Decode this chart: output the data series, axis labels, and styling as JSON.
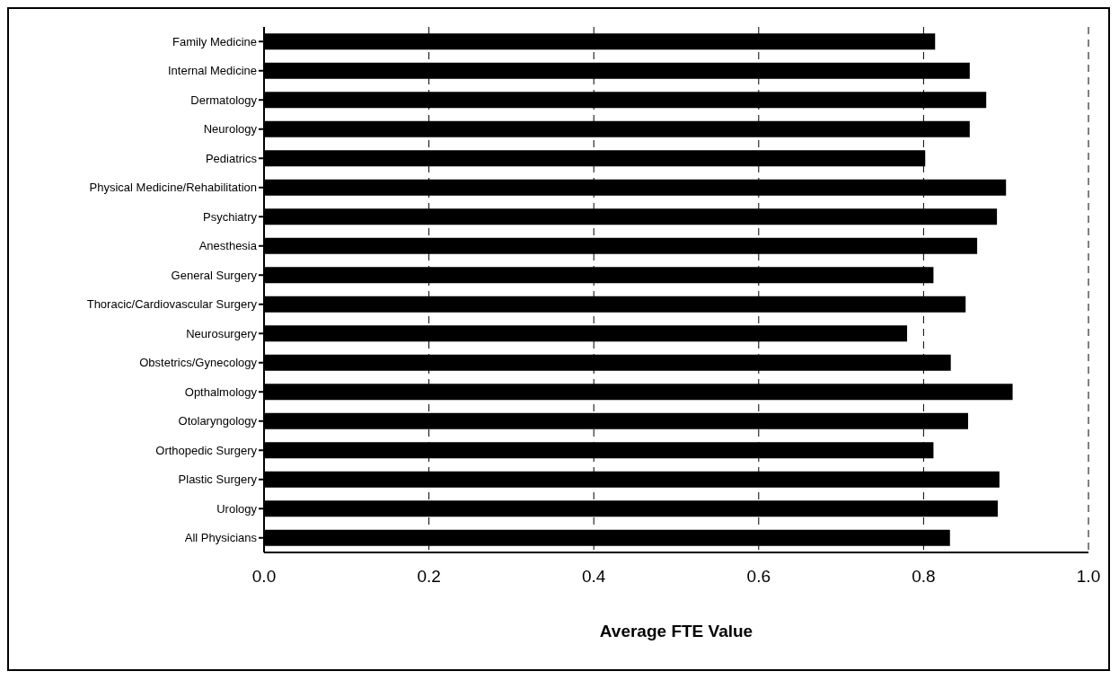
{
  "chart_data": {
    "type": "bar",
    "orientation": "horizontal",
    "xlabel": "Average FTE Value",
    "categories": [
      "Family Medicine",
      "Internal Medicine",
      "Dermatology",
      "Neurology",
      "Pediatrics",
      "Physical Medicine/Rehabilitation",
      "Psychiatry",
      "Anesthesia",
      "General Surgery",
      "Thoracic/Cardiovascular Surgery",
      "Neurosurgery",
      "Obstetrics/Gynecology",
      "Opthalmology",
      "Otolaryngology",
      "Orthopedic Surgery",
      "Plastic Surgery",
      "Urology",
      "All Physicians"
    ],
    "values": [
      0.814,
      0.856,
      0.876,
      0.856,
      0.802,
      0.9,
      0.889,
      0.865,
      0.812,
      0.851,
      0.78,
      0.833,
      0.908,
      0.854,
      0.812,
      0.892,
      0.89,
      0.832
    ],
    "color": "#000000",
    "xlim": [
      0,
      1
    ],
    "xticks": [
      {
        "value": 0,
        "label": "0.0"
      },
      {
        "value": 0.2,
        "label": "0.2"
      },
      {
        "value": 0.4,
        "label": "0.4"
      },
      {
        "value": 0.6,
        "label": "0.6"
      },
      {
        "value": 0.8,
        "label": "0.8"
      },
      {
        "value": 1,
        "label": "1.0"
      }
    ],
    "grid": "x"
  }
}
